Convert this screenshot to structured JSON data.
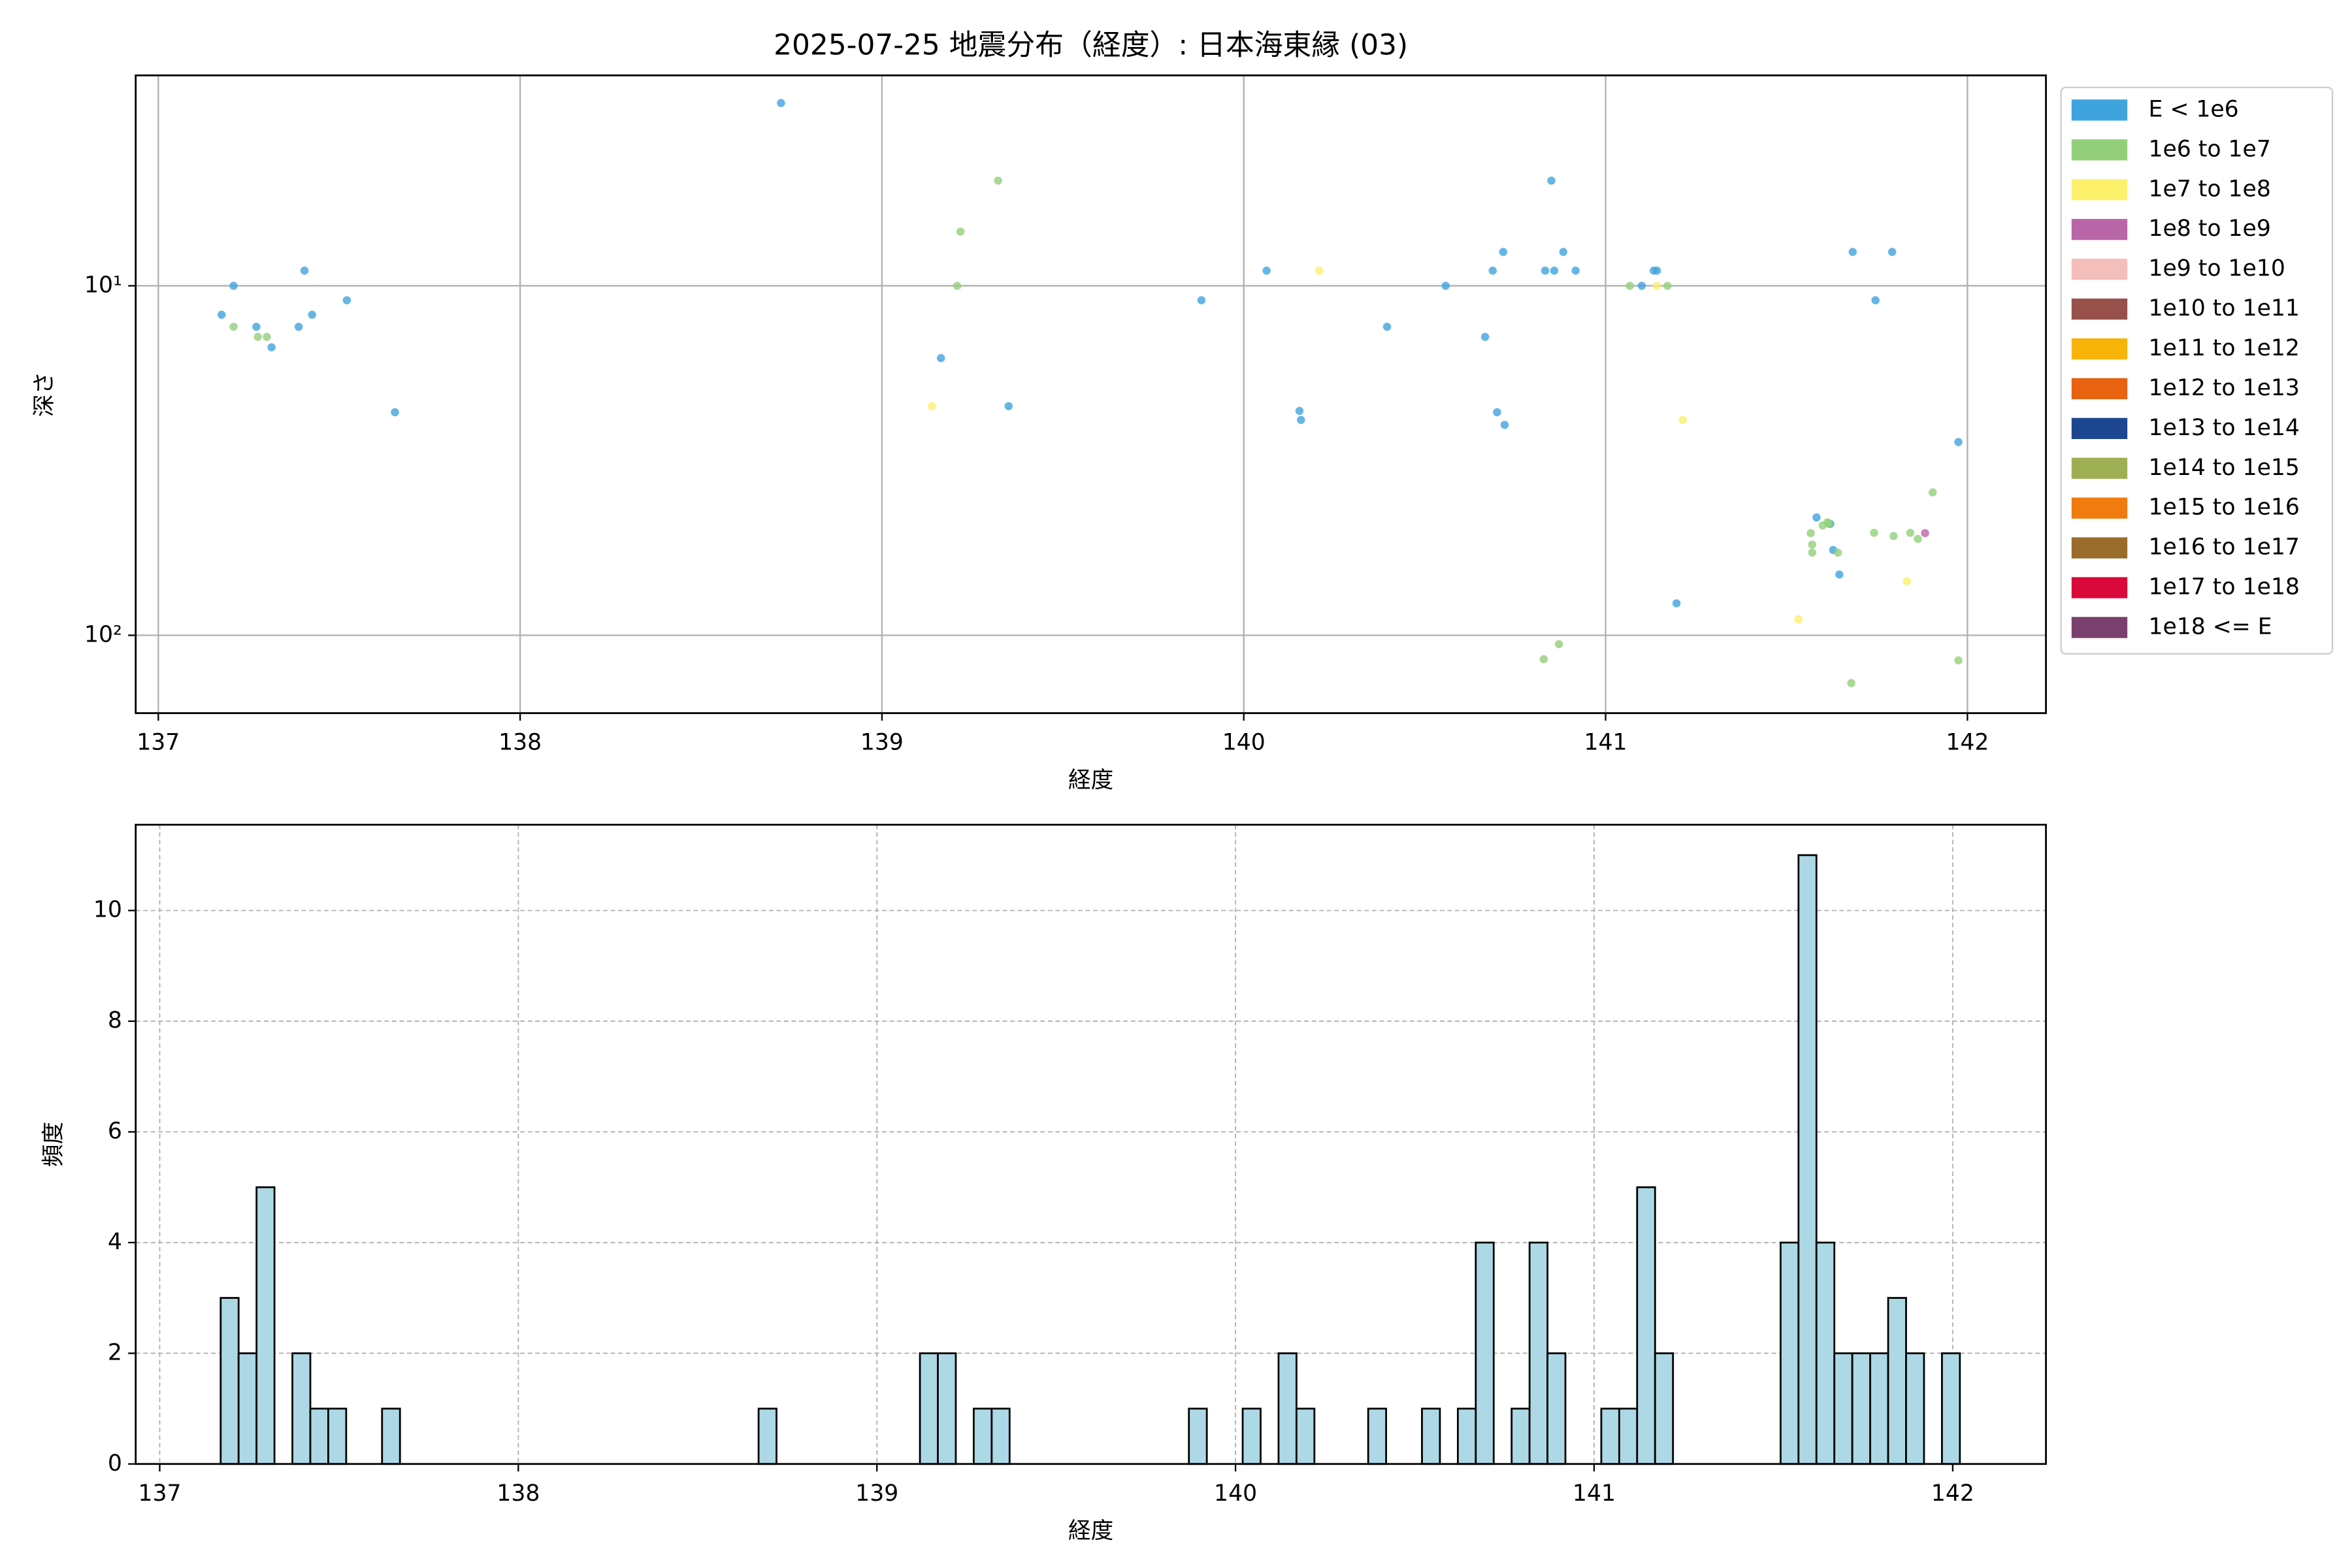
{
  "chart_data": [
    {
      "type": "scatter",
      "title": "2025-07-25 地震分布（経度）: 日本海東縁 (03)",
      "xlabel": "経度",
      "ylabel": "深さ",
      "xlim": [
        136.9375,
        142.217
      ],
      "xticks": [
        137,
        138,
        139,
        140,
        141,
        142
      ],
      "yscale": "log",
      "y_inverted": true,
      "ylim": [
        2.5,
        167
      ],
      "yticks": [
        {
          "value": 10,
          "label": "10¹"
        },
        {
          "value": 100,
          "label": "10²"
        }
      ],
      "grid": true,
      "legend": "outside upper right",
      "series": [
        {
          "name": "E < 1e6",
          "color": "#3fa4de",
          "x": [
            137.175,
            137.208,
            137.271,
            137.313,
            137.388,
            137.404,
            137.425,
            137.521,
            137.654,
            138.721,
            139.163,
            139.35,
            139.883,
            140.063,
            140.154,
            140.158,
            140.396,
            140.558,
            140.667,
            140.688,
            140.717,
            140.7,
            140.721,
            140.833,
            140.858,
            140.85,
            140.883,
            140.917,
            141.1,
            141.133,
            141.142,
            141.196,
            141.583,
            141.621,
            141.629,
            141.646,
            141.683,
            141.746,
            141.792,
            141.975
          ],
          "y": [
            12.1,
            10,
            13.1,
            15.0,
            13.1,
            9.05,
            12.1,
            11.0,
            23.0,
            3.0,
            16.1,
            22.1,
            11.0,
            9.05,
            22.8,
            24.2,
            13.1,
            10,
            14.0,
            9.05,
            8.0,
            23.0,
            25.0,
            9.05,
            9.05,
            5.0,
            8.0,
            9.05,
            10,
            9.05,
            9.05,
            81,
            46,
            48,
            57,
            67,
            8.0,
            11.0,
            8.0,
            28
          ]
        },
        {
          "name": "1e6 to 1e7",
          "color": "#93cf7a",
          "x": [
            137.208,
            137.275,
            137.3,
            139.208,
            139.217,
            139.321,
            141.067,
            141.171,
            140.829,
            140.871,
            141.567,
            141.571,
            141.571,
            141.6,
            141.617,
            141.613,
            141.642,
            141.679,
            141.742,
            141.796,
            141.842,
            141.863,
            141.904,
            141.975
          ],
          "y": [
            13.1,
            14.0,
            14.0,
            10,
            7.0,
            5.0,
            10,
            10,
            117,
            106,
            51,
            55,
            58,
            48.5,
            48,
            47.5,
            58,
            137,
            50.9,
            52,
            50.9,
            53,
            39,
            118
          ]
        },
        {
          "name": "1e7 to 1e8",
          "color": "#fdf06a",
          "x": [
            139.138,
            140.208,
            141.142,
            141.213,
            141.533,
            141.833
          ],
          "y": [
            22.1,
            9.05,
            10,
            24.2,
            90,
            70
          ]
        },
        {
          "name": "1e8 to 1e9",
          "color": "#b966a8",
          "x": [
            141.883
          ],
          "y": [
            51
          ]
        },
        {
          "name": "1e9 to 1e10",
          "color": "#f4bebb",
          "x": [],
          "y": []
        },
        {
          "name": "1e10 to 1e11",
          "color": "#97504a",
          "x": [],
          "y": []
        },
        {
          "name": "1e11 to 1e12",
          "color": "#f9b409",
          "x": [],
          "y": []
        },
        {
          "name": "1e12 to 1e13",
          "color": "#e8620f",
          "x": [],
          "y": []
        },
        {
          "name": "1e13 to 1e14",
          "color": "#1d4690",
          "x": [],
          "y": []
        },
        {
          "name": "1e14 to 1e15",
          "color": "#9eaf53",
          "x": [],
          "y": []
        },
        {
          "name": "1e15 to 1e16",
          "color": "#f07b0e",
          "x": [],
          "y": []
        },
        {
          "name": "1e16 to 1e17",
          "color": "#9a6c2c",
          "x": [],
          "y": []
        },
        {
          "name": "1e17 to 1e18",
          "color": "#d9093c",
          "x": [],
          "y": []
        },
        {
          "name": "1e18 <= E",
          "color": "#7b3f6e",
          "x": [],
          "y": []
        }
      ]
    },
    {
      "type": "histogram",
      "xlabel": "経度",
      "ylabel": "頻度",
      "xlim": [
        136.933,
        142.26
      ],
      "xticks": [
        137,
        138,
        139,
        140,
        141,
        142
      ],
      "ylim": [
        0,
        11.55
      ],
      "yticks": [
        0,
        2,
        4,
        6,
        8,
        10
      ],
      "grid": "dashed",
      "color": "#add8e6",
      "edgecolor": "#000000",
      "bins": [
        137.17,
        137.22,
        137.27,
        137.32,
        137.37,
        137.42,
        137.47,
        137.52,
        137.57,
        137.62,
        137.67,
        137.72,
        137.77,
        137.82,
        137.87,
        137.92,
        137.97,
        138.02,
        138.07,
        138.12,
        138.17,
        138.22,
        138.27,
        138.32,
        138.37,
        138.42,
        138.47,
        138.52,
        138.57,
        138.62,
        138.67,
        138.72,
        138.77,
        138.82,
        138.87,
        138.92,
        138.97,
        139.02,
        139.07,
        139.12,
        139.17,
        139.22,
        139.27,
        139.32,
        139.37,
        139.42,
        139.47,
        139.52,
        139.57,
        139.62,
        139.67,
        139.72,
        139.77,
        139.82,
        139.87,
        139.92,
        139.97,
        140.02,
        140.07,
        140.12,
        140.17,
        140.22,
        140.27,
        140.32,
        140.37,
        140.42,
        140.47,
        140.52,
        140.57,
        140.62,
        140.67,
        140.72,
        140.77,
        140.82,
        140.87,
        140.92,
        140.97,
        141.02,
        141.07,
        141.12,
        141.17,
        141.22,
        141.27,
        141.32,
        141.37,
        141.42,
        141.47,
        141.52,
        141.57,
        141.62,
        141.67,
        141.72,
        141.77,
        141.82,
        141.87,
        141.92,
        141.97,
        142.02
      ],
      "values": [
        3,
        2,
        5,
        0,
        2,
        1,
        1,
        0,
        0,
        1,
        0,
        0,
        0,
        0,
        0,
        0,
        0,
        0,
        0,
        0,
        0,
        0,
        0,
        0,
        0,
        0,
        0,
        0,
        0,
        0,
        1,
        0,
        0,
        0,
        0,
        0,
        0,
        0,
        0,
        2,
        2,
        0,
        1,
        1,
        0,
        0,
        0,
        0,
        0,
        0,
        0,
        0,
        0,
        0,
        1,
        0,
        0,
        1,
        0,
        2,
        1,
        0,
        0,
        0,
        1,
        0,
        0,
        1,
        0,
        1,
        4,
        0,
        1,
        4,
        2,
        0,
        0,
        1,
        1,
        5,
        2,
        0,
        0,
        0,
        0,
        0,
        0,
        4,
        11,
        4,
        2,
        2,
        2,
        3,
        2,
        0,
        2
      ]
    }
  ]
}
